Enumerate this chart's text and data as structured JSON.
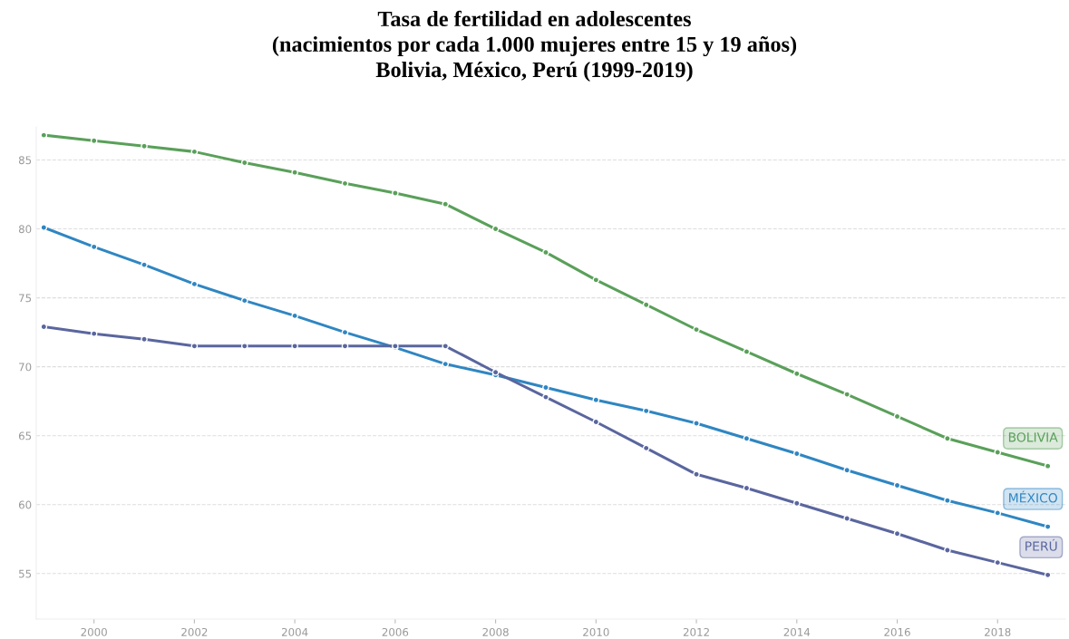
{
  "chart_data": {
    "type": "line",
    "title": "Tasa de fertilidad en adolescentes\n(nacimientos por cada 1.000 mujeres entre 15 y 19 años)\nBolivia, México, Perú (1999-2019)",
    "x": [
      1999,
      2000,
      2001,
      2002,
      2003,
      2004,
      2005,
      2006,
      2007,
      2008,
      2009,
      2010,
      2011,
      2012,
      2013,
      2014,
      2015,
      2016,
      2017,
      2018,
      2019
    ],
    "series": [
      {
        "name": "BOLIVIA",
        "color": "#5aa05a",
        "values": [
          86.8,
          86.4,
          86.0,
          85.6,
          84.8,
          84.1,
          83.3,
          82.6,
          81.8,
          80.0,
          78.3,
          76.3,
          74.5,
          72.7,
          71.1,
          69.5,
          68.0,
          66.4,
          64.8,
          63.8,
          62.8
        ]
      },
      {
        "name": "MÉXICO",
        "color": "#2f86c2",
        "values": [
          80.1,
          78.7,
          77.4,
          76.0,
          74.8,
          73.7,
          72.5,
          71.4,
          70.2,
          69.4,
          68.5,
          67.6,
          66.8,
          65.9,
          64.8,
          63.7,
          62.5,
          61.4,
          60.3,
          59.4,
          58.4
        ]
      },
      {
        "name": "PERÚ",
        "color": "#5a669e",
        "values": [
          72.9,
          72.4,
          72.0,
          71.5,
          71.5,
          71.5,
          71.5,
          71.5,
          71.5,
          69.6,
          67.8,
          66.0,
          64.1,
          62.2,
          61.2,
          60.1,
          59.0,
          57.9,
          56.7,
          55.8,
          54.9
        ]
      }
    ],
    "xlim": [
      1998.85,
      2019.35
    ],
    "ylim": [
      51.7,
      87.4
    ],
    "xticks": [
      2000,
      2002,
      2004,
      2006,
      2008,
      2010,
      2012,
      2014,
      2016,
      2018
    ],
    "yticks": [
      55,
      60,
      65,
      70,
      75,
      80,
      85
    ],
    "grid": "y",
    "legend": false,
    "marker": "circle",
    "line_style": "solid"
  }
}
